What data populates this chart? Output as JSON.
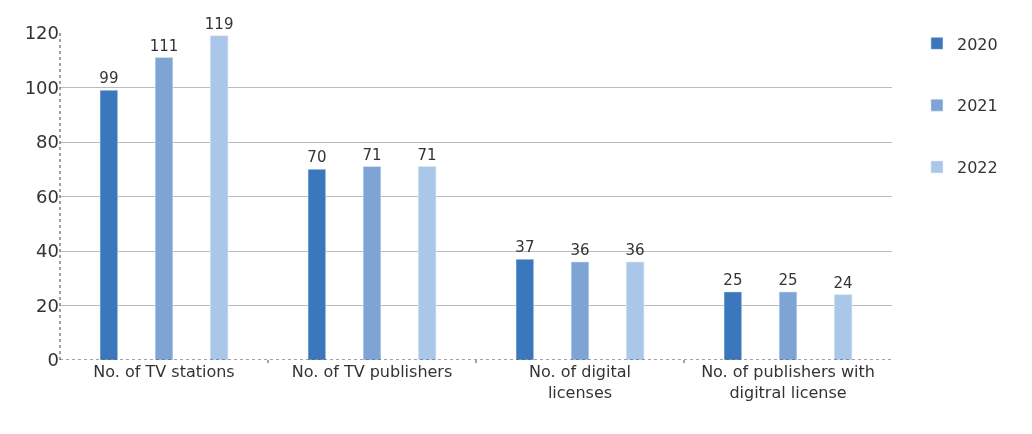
{
  "chart_data": {
    "type": "bar",
    "categories": [
      "No. of TV stations",
      "No. of TV publishers",
      "No. of digital licenses",
      "No. of publishers with digitral license"
    ],
    "series": [
      {
        "name": "2020",
        "color": "#3b77bc",
        "values": [
          99,
          70,
          37,
          25
        ]
      },
      {
        "name": "2021",
        "color": "#7ea4d6",
        "values": [
          111,
          71,
          36,
          25
        ]
      },
      {
        "name": "2022",
        "color": "#aac7e9",
        "values": [
          119,
          71,
          36,
          24
        ]
      }
    ],
    "ylim": [
      0,
      120
    ],
    "yticks": [
      0,
      20,
      40,
      60,
      80,
      100,
      120
    ],
    "grid": "y",
    "legend": "top right",
    "data_labels": true
  }
}
